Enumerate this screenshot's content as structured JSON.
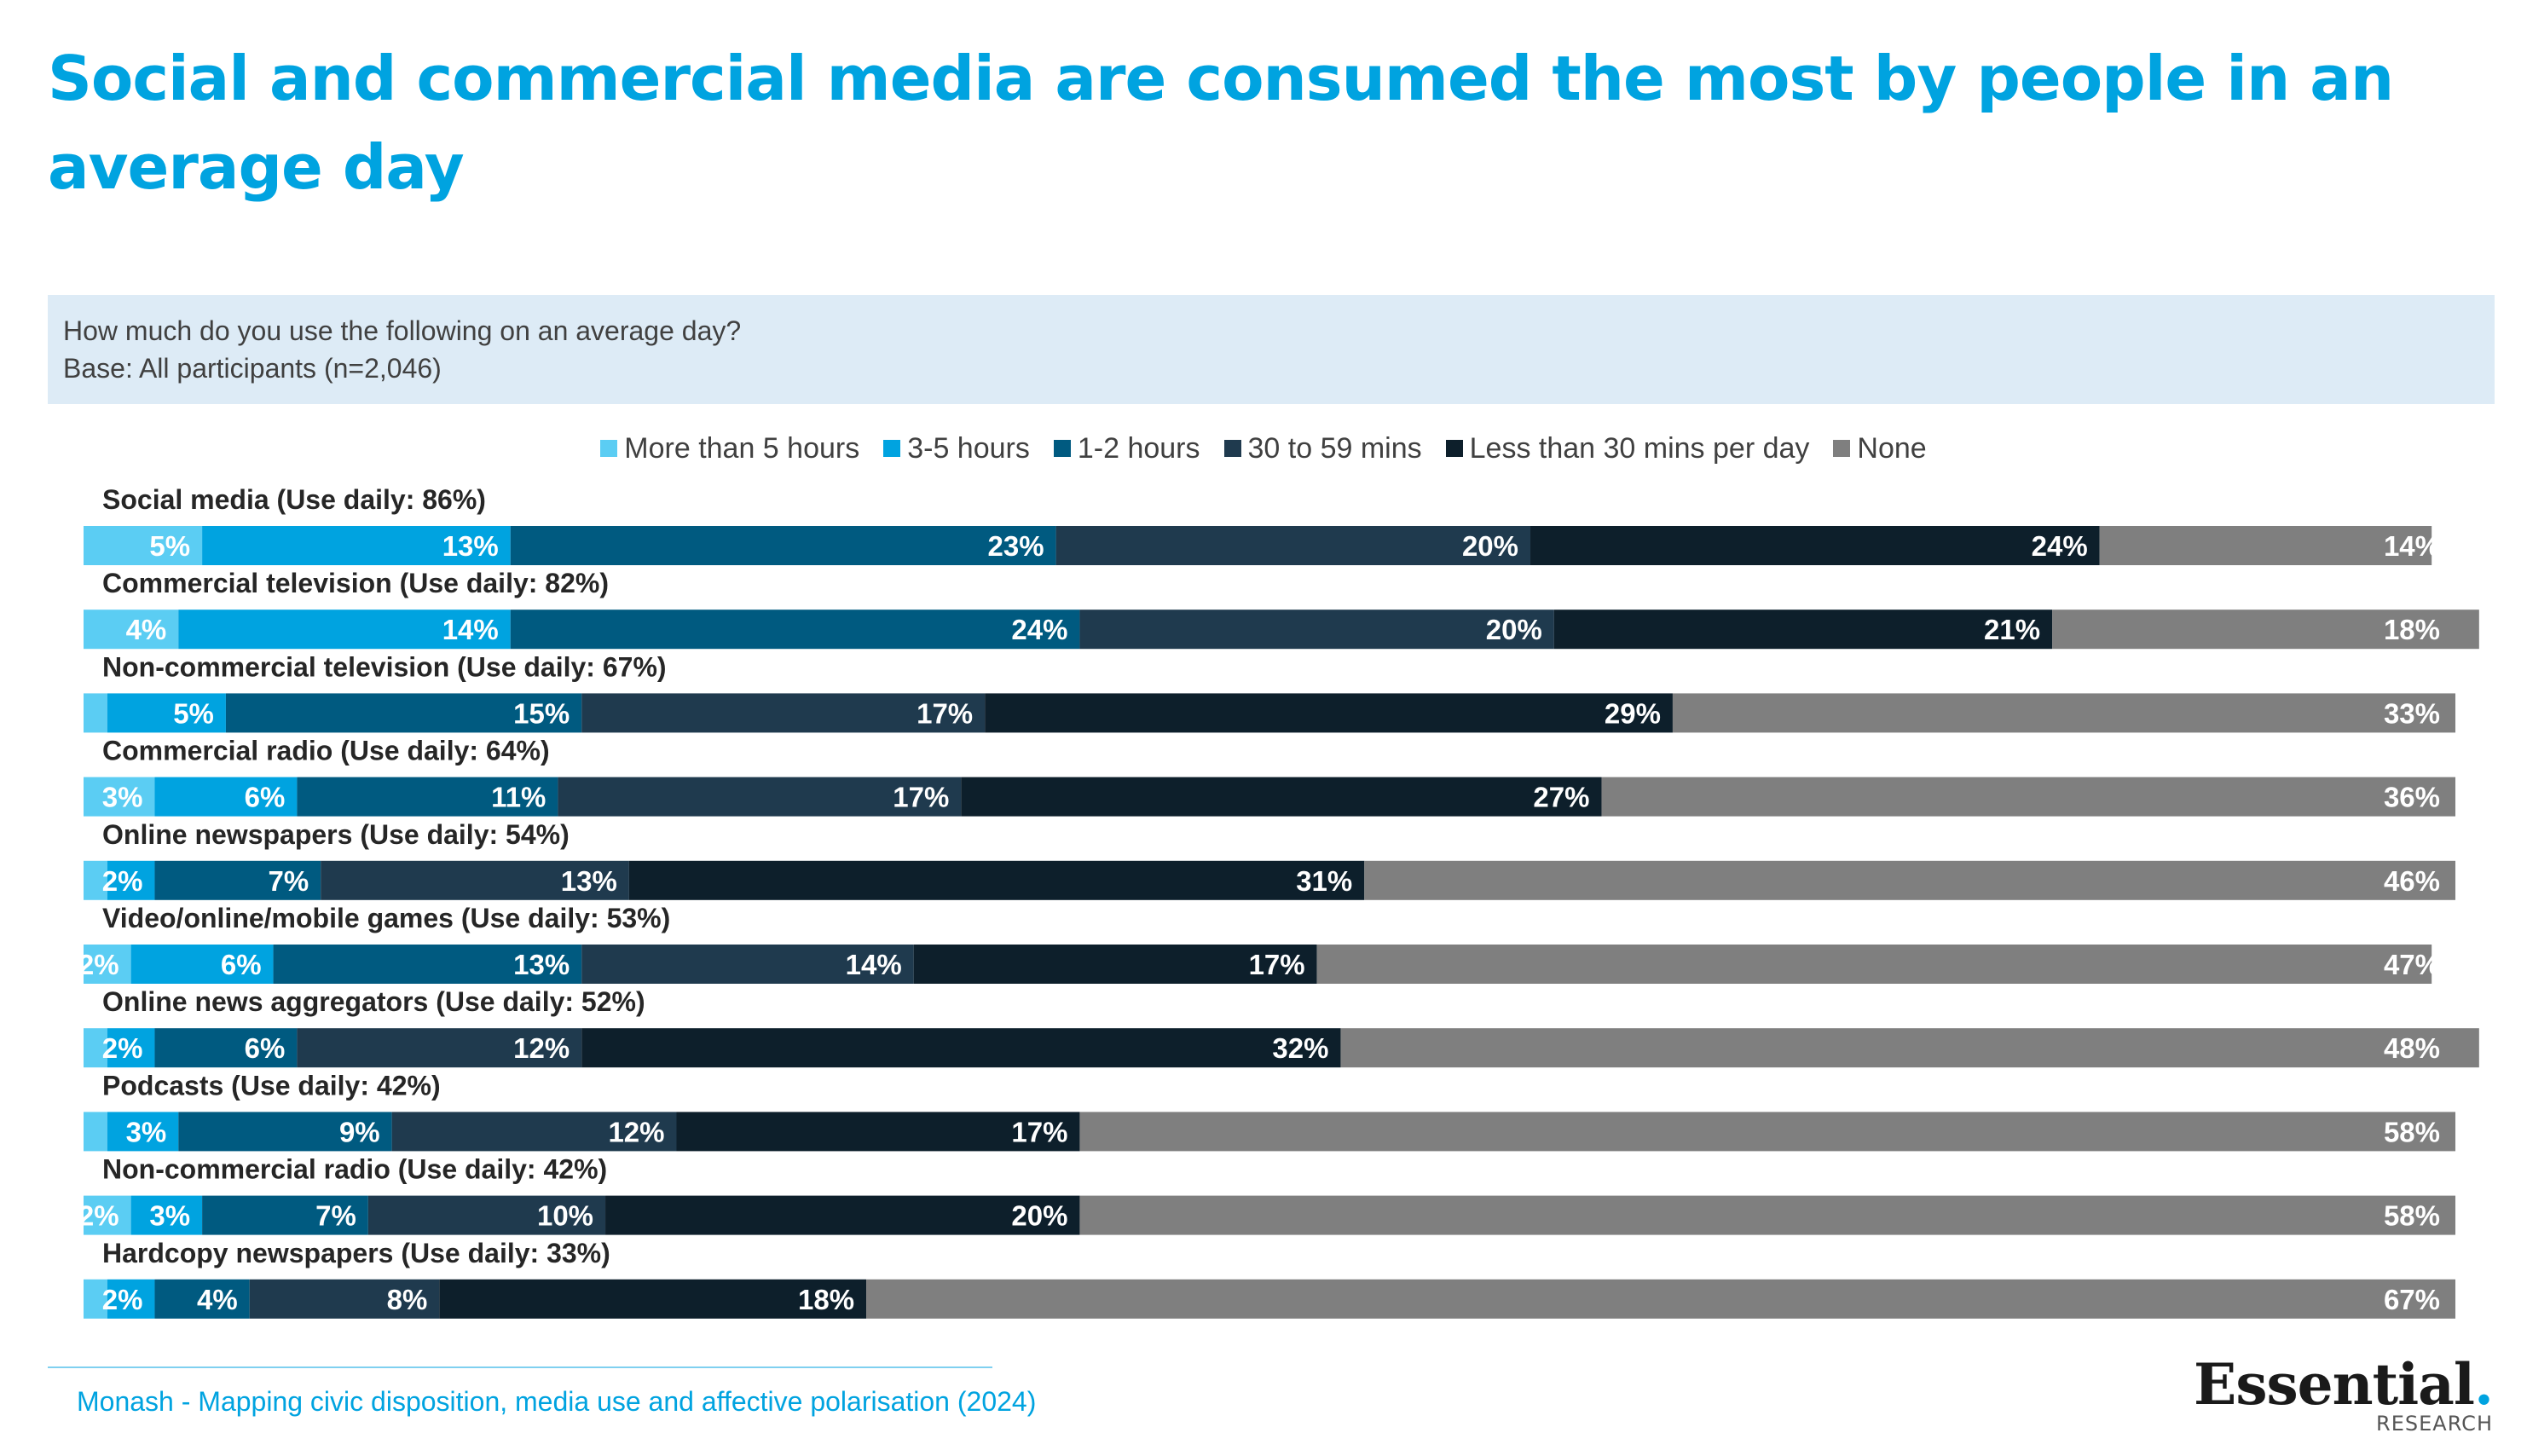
{
  "header": {
    "title": "Social and commercial media are consumed the most by people in an average day"
  },
  "question": {
    "line1": "How much do you use the following on an average day?",
    "line2": "Base: All participants (n=2,046)"
  },
  "colors": {
    "title": "#00a3e0",
    "question_bg": "#ddebf6",
    "series": [
      "#5bcdf3",
      "#00a3e0",
      "#005a80",
      "#1f3a4e",
      "#0d1f2b",
      "#7f7f7f"
    ]
  },
  "chart_data": {
    "type": "bar",
    "orientation": "horizontal",
    "stacked": true,
    "legend_position": "top",
    "series_names": [
      "More than 5 hours",
      "3-5 hours",
      "1-2 hours",
      "30 to 59 mins",
      "Less than 30 mins per day",
      "None"
    ],
    "categories": [
      "Social media (Use daily: 86%)",
      "Commercial television (Use daily: 82%)",
      "Non-commercial television (Use daily: 67%)",
      "Commercial radio (Use daily: 64%)",
      "Online newspapers (Use daily: 54%)",
      "Video/online/mobile games (Use daily: 53%)",
      "Online news aggregators (Use daily: 52%)",
      "Podcasts (Use daily: 42%)",
      "Non-commercial radio (Use daily: 42%)",
      "Hardcopy newspapers (Use daily: 33%)"
    ],
    "values": [
      [
        5,
        13,
        23,
        20,
        24,
        14
      ],
      [
        4,
        14,
        24,
        20,
        21,
        18
      ],
      [
        1,
        5,
        15,
        17,
        29,
        33
      ],
      [
        3,
        6,
        11,
        17,
        27,
        36
      ],
      [
        1,
        2,
        7,
        13,
        31,
        46
      ],
      [
        2,
        6,
        13,
        14,
        17,
        47
      ],
      [
        1,
        2,
        6,
        12,
        32,
        48
      ],
      [
        1,
        3,
        9,
        12,
        17,
        58
      ],
      [
        2,
        3,
        7,
        10,
        20,
        58
      ],
      [
        1,
        2,
        4,
        8,
        18,
        67
      ]
    ],
    "labels": [
      [
        "5%",
        "13%",
        "23%",
        "20%",
        "24%",
        "14%"
      ],
      [
        "4%",
        "14%",
        "24%",
        "20%",
        "21%",
        "18%"
      ],
      [
        "",
        "5%",
        "15%",
        "17%",
        "29%",
        "33%"
      ],
      [
        "3%",
        "6%",
        "11%",
        "17%",
        "27%",
        "36%"
      ],
      [
        "",
        "2%",
        "7%",
        "13%",
        "31%",
        "46%"
      ],
      [
        "2%",
        "6%",
        "13%",
        "14%",
        "17%",
        "47%"
      ],
      [
        "",
        "2%",
        "6%",
        "12%",
        "32%",
        "48%"
      ],
      [
        "",
        "3%",
        "9%",
        "12%",
        "17%",
        "58%"
      ],
      [
        "2%",
        "3%",
        "7%",
        "10%",
        "20%",
        "58%"
      ],
      [
        "",
        "2%",
        "4%",
        "8%",
        "18%",
        "67%"
      ]
    ],
    "xlim": [
      0,
      100
    ]
  },
  "footer": {
    "source": "Monash - Mapping civic disposition, media use and affective polarisation (2024)",
    "logo_text": "Essential",
    "logo_dot": ".",
    "logo_sub": "RESEARCH"
  }
}
